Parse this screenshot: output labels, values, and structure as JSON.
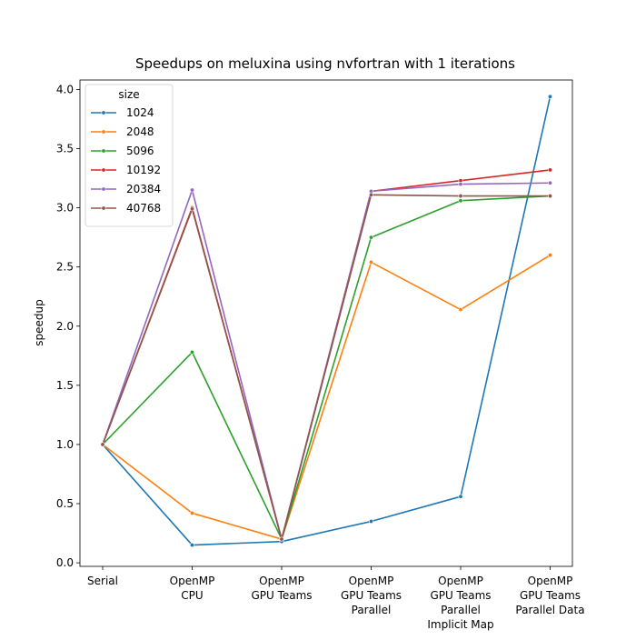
{
  "chart_data": {
    "type": "line",
    "title": "Speedups on meluxina using nvfortran with 1 iterations",
    "xlabel": "",
    "ylabel": "speedup",
    "ylim": [
      -0.03,
      4.08
    ],
    "yticks": [
      0.0,
      0.5,
      1.0,
      1.5,
      2.0,
      2.5,
      3.0,
      3.5,
      4.0
    ],
    "ytick_labels": [
      "0.0",
      "0.5",
      "1.0",
      "1.5",
      "2.0",
      "2.5",
      "3.0",
      "3.5",
      "4.0"
    ],
    "categories": [
      [
        "Serial"
      ],
      [
        "OpenMP",
        "CPU"
      ],
      [
        "OpenMP",
        "GPU Teams"
      ],
      [
        "OpenMP",
        "GPU Teams",
        "Parallel"
      ],
      [
        "OpenMP",
        "GPU Teams",
        "Parallel",
        "Implicit Map"
      ],
      [
        "OpenMP",
        "GPU Teams",
        "Parallel Data"
      ]
    ],
    "grid": false,
    "legend": {
      "title": "size",
      "placement": "top-left"
    },
    "series": [
      {
        "name": "1024",
        "color": "#1f77b4",
        "values": [
          1.0,
          0.15,
          0.18,
          0.35,
          0.56,
          3.94
        ]
      },
      {
        "name": "2048",
        "color": "#ff7f0e",
        "values": [
          1.0,
          0.42,
          0.2,
          2.54,
          2.14,
          2.6
        ]
      },
      {
        "name": "5096",
        "color": "#2ca02c",
        "values": [
          1.0,
          1.78,
          0.2,
          2.75,
          3.06,
          3.1
        ]
      },
      {
        "name": "10192",
        "color": "#d62728",
        "values": [
          1.0,
          3.0,
          0.2,
          3.14,
          3.23,
          3.32
        ]
      },
      {
        "name": "20384",
        "color": "#9467bd",
        "values": [
          1.0,
          3.15,
          0.2,
          3.14,
          3.2,
          3.21
        ]
      },
      {
        "name": "40768",
        "color": "#8c564b",
        "values": [
          1.0,
          2.99,
          0.2,
          3.11,
          3.1,
          3.1
        ]
      }
    ]
  }
}
